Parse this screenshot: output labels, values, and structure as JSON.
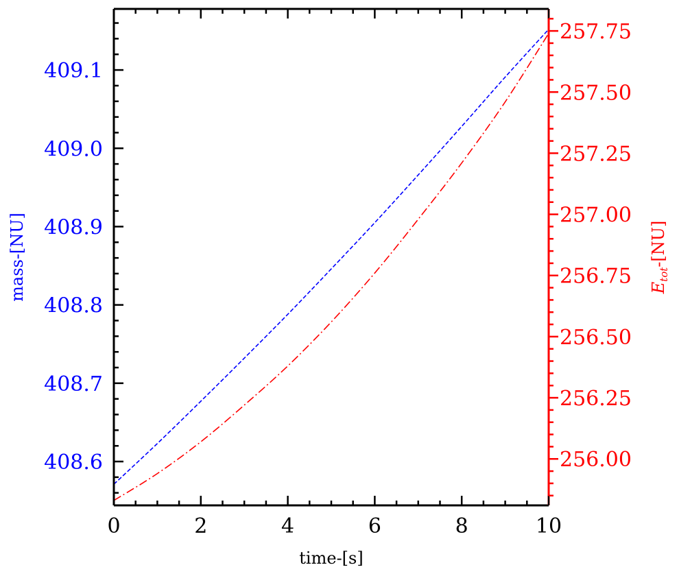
{
  "chart_data": {
    "type": "line",
    "title": "",
    "xlabel": "time-[s]",
    "ylabel_left": "mass-[NU]",
    "ylabel_right": {
      "base": "E",
      "sub": "tot",
      "suffix": "-[NU]"
    },
    "xlim": [
      0,
      10
    ],
    "ylim_left": [
      408.544,
      409.178
    ],
    "ylim_right": [
      255.81,
      257.84
    ],
    "x_ticks": [
      0,
      2,
      4,
      6,
      8,
      10
    ],
    "x_tick_labels": [
      "0",
      "2",
      "4",
      "6",
      "8",
      "10"
    ],
    "y_left_ticks": [
      408.6,
      408.7,
      408.8,
      408.9,
      409.0,
      409.1
    ],
    "y_left_tick_labels": [
      "408.6",
      "408.7",
      "408.8",
      "408.9",
      "409.0",
      "409.1"
    ],
    "y_right_ticks": [
      256.0,
      256.25,
      256.5,
      256.75,
      257.0,
      257.25,
      257.5,
      257.75
    ],
    "y_right_tick_labels": [
      "256.00",
      "256.25",
      "256.50",
      "256.75",
      "257.00",
      "257.25",
      "257.50",
      "257.75"
    ],
    "grid": false,
    "colors": {
      "left": "#0000ff",
      "right": "#ff0000",
      "frame": "#000000"
    },
    "series": [
      {
        "axis": "left",
        "style": "dashed",
        "color": "#0000ff",
        "x": [
          0,
          1,
          2,
          3,
          4,
          5,
          6,
          7,
          8,
          9,
          10
        ],
        "y": [
          408.571,
          408.623,
          408.677,
          408.732,
          408.788,
          408.846,
          408.905,
          408.966,
          409.028,
          409.091,
          409.152
        ]
      },
      {
        "axis": "right",
        "style": "dashdot",
        "color": "#ff0000",
        "x": [
          0,
          1,
          2,
          3,
          4,
          5,
          6,
          7,
          8,
          9,
          10
        ],
        "y": [
          255.83,
          255.94,
          256.07,
          256.22,
          256.38,
          256.56,
          256.76,
          256.98,
          257.21,
          257.46,
          257.74
        ]
      }
    ]
  }
}
